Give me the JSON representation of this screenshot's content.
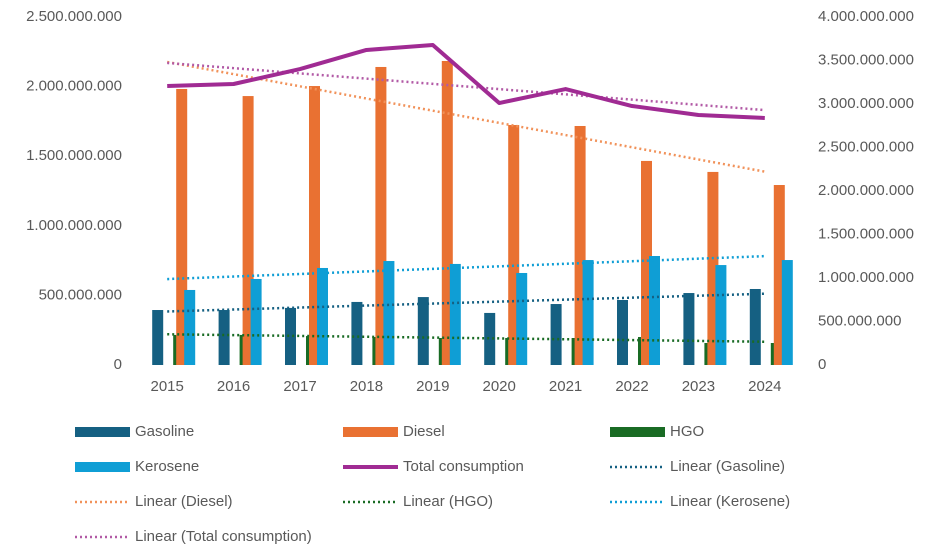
{
  "chart_data": {
    "type": "bar",
    "categories": [
      "2015",
      "2016",
      "2017",
      "2018",
      "2019",
      "2020",
      "2021",
      "2022",
      "2023",
      "2024"
    ],
    "series": [
      {
        "name": "Gasoline",
        "color": "#156082",
        "values": [
          395000000,
          395000000,
          410000000,
          453000000,
          488000000,
          374000000,
          438000000,
          467000000,
          517000000,
          546000000
        ],
        "trendline": {
          "name": "Linear (Gasoline)",
          "color": "#156082"
        }
      },
      {
        "name": "Diesel",
        "color": "#e97132",
        "values": [
          1983000000,
          1932000000,
          2004000000,
          2141000000,
          2184000000,
          1724000000,
          1717000000,
          1466000000,
          1387000000,
          1293000000
        ],
        "trendline": {
          "name": "Linear (Diesel)",
          "color": "#f1925a"
        }
      },
      {
        "name": "HGO",
        "color": "#196b24",
        "values": [
          216000000,
          216000000,
          208000000,
          201000000,
          194000000,
          194000000,
          194000000,
          201000000,
          158000000,
          158000000
        ],
        "trendline": {
          "name": "Linear (HGO)",
          "color": "#196b24"
        }
      },
      {
        "name": "Kerosene",
        "color": "#0f9ed5",
        "values": [
          539000000,
          618000000,
          697000000,
          747000000,
          726000000,
          661000000,
          754000000,
          783000000,
          718000000,
          754000000
        ],
        "trendline": {
          "name": "Linear (Kerosene)",
          "color": "#0f9ed5"
        }
      },
      {
        "name": "Total consumption",
        "type": "line",
        "axis": "y2",
        "color": "#a02b93",
        "values": [
          3207000000,
          3230000000,
          3402000000,
          3621000000,
          3678000000,
          3011000000,
          3172000000,
          2977000000,
          2874000000,
          2839000000
        ],
        "trendline": {
          "name": "Linear (Total consumption)",
          "color": "#b25aa6"
        }
      }
    ],
    "ylim": [
      0,
      2500000000
    ],
    "yticks": [
      0,
      {
        "value": 500000000,
        "label": "500.000.000"
      },
      {
        "value": 1000000000,
        "label": "1.000.000.000"
      },
      {
        "value": 1500000000,
        "label": "1.500.000.000"
      },
      {
        "value": 2000000000,
        "label": "2.000.000.000"
      },
      {
        "value": 2500000000,
        "label": "2.500.000.000"
      }
    ],
    "y2lim": [
      0,
      4000000000
    ],
    "y2ticks": [
      0,
      {
        "value": 500000000,
        "label": "500.000.000"
      },
      {
        "value": 1000000000,
        "label": "1.000.000.000"
      },
      {
        "value": 1500000000,
        "label": "1.500.000.000"
      },
      {
        "value": 2000000000,
        "label": "2.000.000.000"
      },
      {
        "value": 2500000000,
        "label": "2.500.000.000"
      },
      {
        "value": 3000000000,
        "label": "3.000.000.000"
      },
      {
        "value": 3500000000,
        "label": "3.500.000.000"
      },
      {
        "value": 4000000000,
        "label": "4.000.000.000"
      }
    ],
    "legend": "bottom",
    "grid": false
  }
}
